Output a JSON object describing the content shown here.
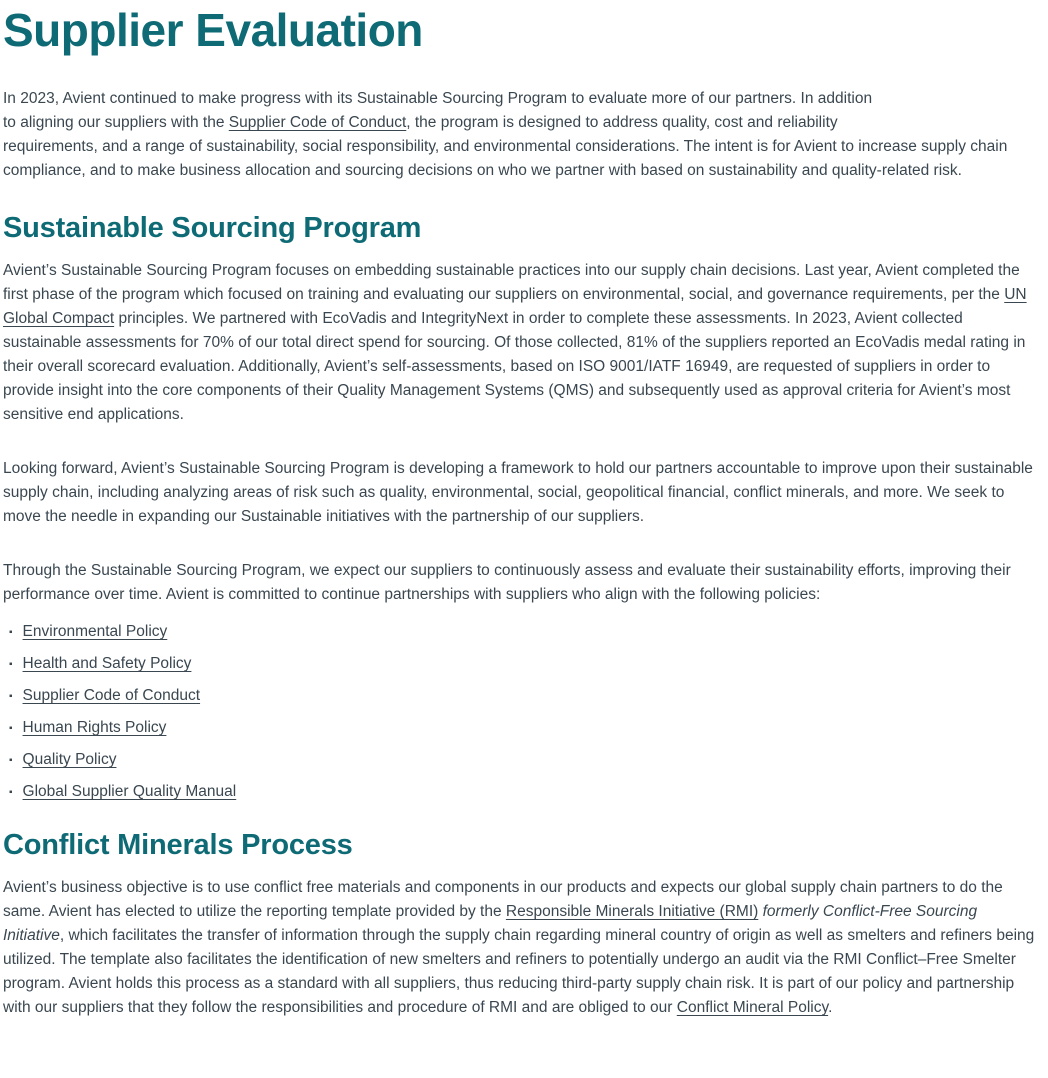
{
  "page": {
    "title": "Supplier Evaluation"
  },
  "colors": {
    "heading_teal": "#0e6a75",
    "body_text": "#3a4750"
  },
  "intro": {
    "line1": "In 2023, Avient continued to make progress with its Sustainable Sourcing Program to evaluate more of our partners. In addition",
    "line2_pre": "to aligning our suppliers with the ",
    "line2_link": "Supplier Code of Conduct",
    "line2_post": ", the program is designed to address quality, cost and reliability",
    "line3": "requirements, and a range of sustainability, social responsibility, and environmental considerations. The intent is for Avient to increase supply chain compliance, and to make business allocation and sourcing decisions on who we partner with based on sustainability and quality-related risk."
  },
  "sourcing_section": {
    "heading": "Sustainable Sourcing Program",
    "p1_pre": "Avient’s Sustainable Sourcing Program focuses on embedding sustainable practices into our supply chain decisions. Last year, Avient completed the first phase of the program which focused on training and evaluating our suppliers on environmental, social, and governance requirements, per the ",
    "p1_link": "UN Global Compact",
    "p1_post": " principles. We partnered with EcoVadis and IntegrityNext in order to complete these assessments. In 2023, Avient collected sustainable assessments for 70% of our total direct spend for sourcing. Of those collected, 81% of the suppliers reported an EcoVadis medal rating in their overall scorecard evaluation. Additionally, Avient’s self-assessments, based on ISO 9001/IATF 16949, are requested of suppliers in order to provide insight into the core components of their Quality Management Systems (QMS) and subsequently used as approval criteria for Avient’s most sensitive end applications.",
    "p2": "Looking forward, Avient’s Sustainable Sourcing Program is developing a framework to hold our partners accountable to improve upon their sustainable supply chain, including analyzing areas of risk such as quality, environmental, social, geopolitical financial, conflict minerals, and more. We seek to move the needle in expanding our Sustainable initiatives with the partnership of our suppliers.",
    "p3": "Through the Sustainable Sourcing Program, we expect our suppliers to continuously assess and evaluate their sustainability efforts, improving their performance over time. Avient is committed to continue partnerships with suppliers who align with the following policies:",
    "bullet_glyph": "▪",
    "policies": [
      {
        "label": "Environmental Policy"
      },
      {
        "label": "Health and Safety Policy"
      },
      {
        "label": "Supplier Code of Conduct"
      },
      {
        "label": "Human Rights Policy"
      },
      {
        "label": "Quality Policy"
      },
      {
        "label": "Global Supplier Quality Manual"
      }
    ]
  },
  "conflict_section": {
    "heading": "Conflict Minerals Process",
    "p_pre": "Avient’s business objective is to use conflict free materials and components in our products and expects our global supply chain partners to do the same. Avient has elected to utilize the reporting template provided by the ",
    "p_link1": "Responsible Minerals Initiative (RMI)",
    "p_italic": " formerly Conflict-Free Sourcing Initiative",
    "p_mid": ", which facilitates the transfer of information through the supply chain regarding mineral country of origin as well as smelters and refiners being utilized. The template also facilitates the identification of new smelters and refiners to potentially undergo an audit via the RMI Conflict–Free Smelter program. Avient holds this process as a standard with all suppliers, thus reducing third-party supply chain risk. It is part of our policy and partnership with our suppliers that they follow the responsibilities and procedure of RMI and are obliged to our ",
    "p_link2": "Conflict Mineral Policy",
    "p_end": "."
  }
}
